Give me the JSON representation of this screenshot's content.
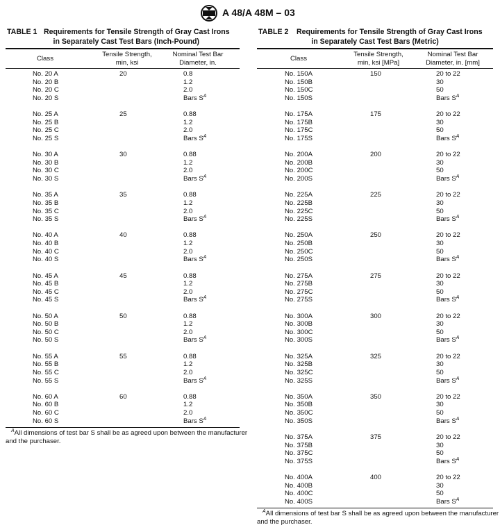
{
  "header": {
    "title": "A 48/A 48M – 03"
  },
  "table1": {
    "label": "TABLE 1",
    "caption": [
      "Requirements for Tensile Strength of Gray Cast Irons",
      "in Separately Cast Test Bars (Inch-Pound)"
    ],
    "columns": [
      [
        "Class"
      ],
      [
        "Tensile Strength,",
        "min, ksi"
      ],
      [
        "Nominal Test Bar",
        "Diameter, in."
      ]
    ],
    "groups": [
      {
        "strength": 20,
        "rows": [
          {
            "class": "No. 20 A",
            "diameter": "0.8"
          },
          {
            "class": "No. 20 B",
            "diameter": "1.2"
          },
          {
            "class": "No. 20 C",
            "diameter": "2.0"
          },
          {
            "class": "No. 20 S",
            "diameter": "Bars S",
            "note": "A"
          }
        ]
      },
      {
        "strength": 25,
        "rows": [
          {
            "class": "No. 25 A",
            "diameter": "0.88"
          },
          {
            "class": "No. 25 B",
            "diameter": "1.2"
          },
          {
            "class": "No. 25 C",
            "diameter": "2.0"
          },
          {
            "class": "No. 25 S",
            "diameter": "Bars S",
            "note": "A"
          }
        ]
      },
      {
        "strength": 30,
        "rows": [
          {
            "class": "No. 30 A",
            "diameter": "0.88"
          },
          {
            "class": "No. 30 B",
            "diameter": "1.2"
          },
          {
            "class": "No. 30 C",
            "diameter": "2.0"
          },
          {
            "class": "No. 30 S",
            "diameter": "Bars S",
            "note": "A"
          }
        ]
      },
      {
        "strength": 35,
        "rows": [
          {
            "class": "No. 35 A",
            "diameter": "0.88"
          },
          {
            "class": "No. 35 B",
            "diameter": "1.2"
          },
          {
            "class": "No. 35 C",
            "diameter": "2.0"
          },
          {
            "class": "No. 35 S",
            "diameter": "Bars S",
            "note": "A"
          }
        ]
      },
      {
        "strength": 40,
        "rows": [
          {
            "class": "No. 40 A",
            "diameter": "0.88"
          },
          {
            "class": "No. 40 B",
            "diameter": "1.2"
          },
          {
            "class": "No. 40 C",
            "diameter": "2.0"
          },
          {
            "class": "No. 40 S",
            "diameter": "Bars S",
            "note": "A"
          }
        ]
      },
      {
        "strength": 45,
        "rows": [
          {
            "class": "No. 45 A",
            "diameter": "0.88"
          },
          {
            "class": "No. 45 B",
            "diameter": "1.2"
          },
          {
            "class": "No. 45 C",
            "diameter": "2.0"
          },
          {
            "class": "No. 45 S",
            "diameter": "Bars S",
            "note": "A"
          }
        ]
      },
      {
        "strength": 50,
        "rows": [
          {
            "class": "No. 50 A",
            "diameter": "0.88"
          },
          {
            "class": "No. 50 B",
            "diameter": "1.2"
          },
          {
            "class": "No. 50 C",
            "diameter": "2.0"
          },
          {
            "class": "No. 50 S",
            "diameter": "Bars S",
            "note": "A"
          }
        ]
      },
      {
        "strength": 55,
        "rows": [
          {
            "class": "No. 55 A",
            "diameter": "0.88"
          },
          {
            "class": "No. 55 B",
            "diameter": "1.2"
          },
          {
            "class": "No. 55 C",
            "diameter": "2.0"
          },
          {
            "class": "No. 55 S",
            "diameter": "Bars S",
            "note": "A"
          }
        ]
      },
      {
        "strength": 60,
        "rows": [
          {
            "class": "No. 60 A",
            "diameter": "0.88"
          },
          {
            "class": "No. 60 B",
            "diameter": "1.2"
          },
          {
            "class": "No. 60 C",
            "diameter": "2.0"
          },
          {
            "class": "No. 60 S",
            "diameter": "Bars S",
            "note": "A"
          }
        ]
      }
    ],
    "footnote": {
      "mark": "A",
      "lines": [
        "All dimensions of test bar S shall be as agreed upon between the manufacturer",
        "and the purchaser."
      ]
    }
  },
  "table2": {
    "label": "TABLE 2",
    "caption": [
      "Requirements for Tensile Strength of Gray Cast Irons",
      "in Separately Cast Test Bars (Metric)"
    ],
    "columns": [
      [
        "Class"
      ],
      [
        "Tensile Strength,",
        "min, ksi [MPa]"
      ],
      [
        "Nominal Test Bar",
        "Diameter, in. [mm]"
      ]
    ],
    "groups": [
      {
        "strength": 150,
        "rows": [
          {
            "class": "No. 150A",
            "diameter": "20 to 22"
          },
          {
            "class": "No. 150B",
            "diameter": "30"
          },
          {
            "class": "No. 150C",
            "diameter": "50"
          },
          {
            "class": "No. 150S",
            "diameter": "Bars S",
            "note": "A"
          }
        ]
      },
      {
        "strength": 175,
        "rows": [
          {
            "class": "No. 175A",
            "diameter": "20 to 22"
          },
          {
            "class": "No. 175B",
            "diameter": "30"
          },
          {
            "class": "No. 175C",
            "diameter": "50"
          },
          {
            "class": "No. 175S",
            "diameter": "Bars S",
            "note": "A"
          }
        ]
      },
      {
        "strength": 200,
        "rows": [
          {
            "class": "No. 200A",
            "diameter": "20 to 22"
          },
          {
            "class": "No. 200B",
            "diameter": "30"
          },
          {
            "class": "No. 200C",
            "diameter": "50"
          },
          {
            "class": "No. 200S",
            "diameter": "Bars S",
            "note": "A"
          }
        ]
      },
      {
        "strength": 225,
        "rows": [
          {
            "class": "No. 225A",
            "diameter": "20 to 22"
          },
          {
            "class": "No. 225B",
            "diameter": "30"
          },
          {
            "class": "No. 225C",
            "diameter": "50"
          },
          {
            "class": "No. 225S",
            "diameter": "Bars S",
            "note": "A"
          }
        ]
      },
      {
        "strength": 250,
        "rows": [
          {
            "class": "No. 250A",
            "diameter": "20 to 22"
          },
          {
            "class": "No. 250B",
            "diameter": "30"
          },
          {
            "class": "No. 250C",
            "diameter": "50"
          },
          {
            "class": "No. 250S",
            "diameter": "Bars S",
            "note": "A"
          }
        ]
      },
      {
        "strength": 275,
        "rows": [
          {
            "class": "No. 275A",
            "diameter": "20 to 22"
          },
          {
            "class": "No. 275B",
            "diameter": "30"
          },
          {
            "class": "No. 275C",
            "diameter": "50"
          },
          {
            "class": "No. 275S",
            "diameter": "Bars S",
            "note": "A"
          }
        ]
      },
      {
        "strength": 300,
        "rows": [
          {
            "class": "No. 300A",
            "diameter": "20 to 22"
          },
          {
            "class": "No. 300B",
            "diameter": "30"
          },
          {
            "class": "No. 300C",
            "diameter": "50"
          },
          {
            "class": "No. 300S",
            "diameter": "Bars S",
            "note": "A"
          }
        ]
      },
      {
        "strength": 325,
        "rows": [
          {
            "class": "No. 325A",
            "diameter": "20 to 22"
          },
          {
            "class": "No. 325B",
            "diameter": "30"
          },
          {
            "class": "No. 325C",
            "diameter": "50"
          },
          {
            "class": "No. 325S",
            "diameter": "Bars S",
            "note": "A"
          }
        ]
      },
      {
        "strength": 350,
        "rows": [
          {
            "class": "No. 350A",
            "diameter": "20 to 22"
          },
          {
            "class": "No. 350B",
            "diameter": "30"
          },
          {
            "class": "No. 350C",
            "diameter": "50"
          },
          {
            "class": "No. 350S",
            "diameter": "Bars S",
            "note": "A"
          }
        ]
      },
      {
        "strength": 375,
        "rows": [
          {
            "class": "No. 375A",
            "diameter": "20 to 22"
          },
          {
            "class": "No. 375B",
            "diameter": "30"
          },
          {
            "class": "No. 375C",
            "diameter": "50"
          },
          {
            "class": "No. 375S",
            "diameter": "Bars S",
            "note": "A"
          }
        ]
      },
      {
        "strength": 400,
        "rows": [
          {
            "class": "No. 400A",
            "diameter": "20 to 22"
          },
          {
            "class": "No. 400B",
            "diameter": "30"
          },
          {
            "class": "No. 400C",
            "diameter": "50"
          },
          {
            "class": "No. 400S",
            "diameter": "Bars S",
            "note": "A"
          }
        ]
      }
    ],
    "footnote": {
      "mark": "A",
      "lines": [
        "All dimensions of test bar S shall be as agreed upon between the manufacturer",
        "and the purchaser."
      ]
    }
  }
}
